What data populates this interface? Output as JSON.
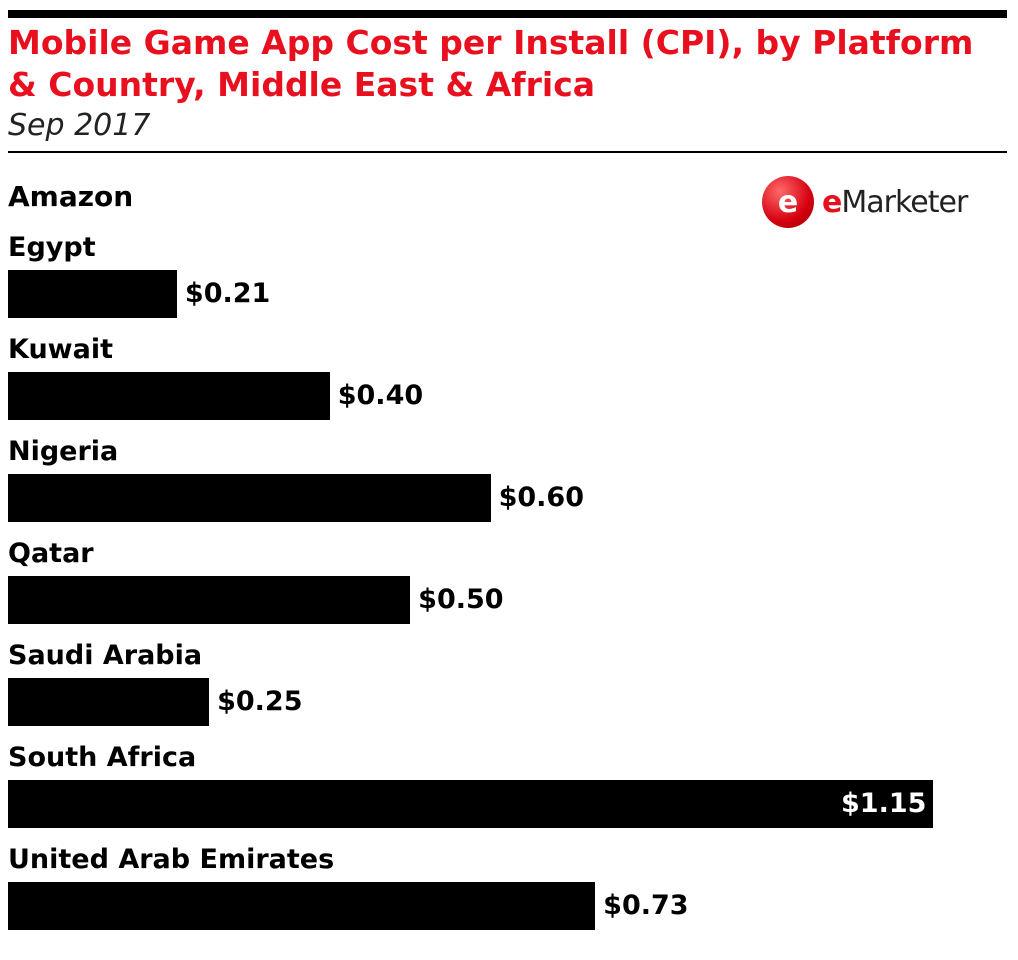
{
  "chart_data": {
    "type": "bar",
    "title": "Mobile Game App Cost per Install (CPI), by Platform & Country, Middle East & Africa",
    "subtitle": "Sep 2017",
    "group": "Amazon",
    "categories": [
      "Egypt",
      "Kuwait",
      "Nigeria",
      "Qatar",
      "Saudi Arabia",
      "South Africa",
      "United Arab Emirates"
    ],
    "values": [
      0.21,
      0.4,
      0.6,
      0.5,
      0.25,
      1.15,
      0.73
    ],
    "labels": [
      "$0.21",
      "$0.40",
      "$0.60",
      "$0.50",
      "$0.25",
      "$1.15",
      "$0.73"
    ],
    "orientation": "horizontal",
    "bar_color": "#000000",
    "title_color": "#e8101e"
  },
  "logo": {
    "text": "eMarketer"
  }
}
